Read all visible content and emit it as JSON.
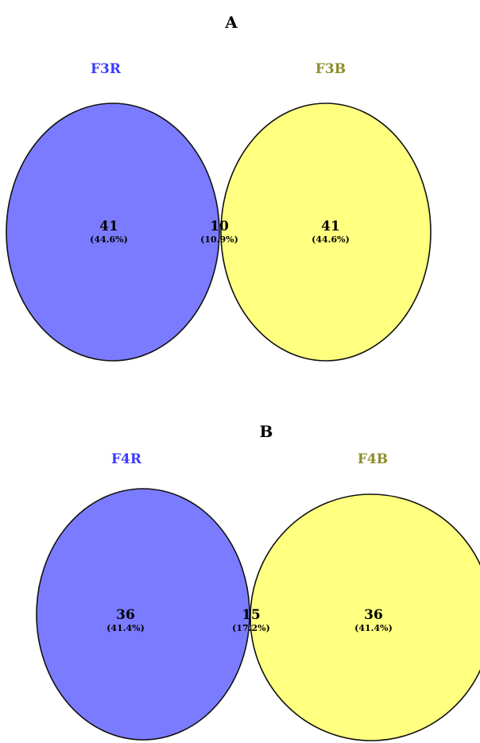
{
  "panels": [
    {
      "label": "A",
      "sets": [
        {
          "name": "F3R",
          "color": "#7b7bff",
          "label_color": "#3b3bff"
        },
        {
          "name": "F3B",
          "color": "#ffff80",
          "label_color": "#8c8c2c"
        }
      ],
      "overlap_color": "#99995f",
      "regions": {
        "left_only": {
          "count": "41",
          "pct": "(44.6%)"
        },
        "both": {
          "count": "10",
          "pct": "(10.9%)"
        },
        "right_only": {
          "count": "41",
          "pct": "(44.6%)"
        }
      }
    },
    {
      "label": "B",
      "sets": [
        {
          "name": "F4R",
          "color": "#7b7bff",
          "label_color": "#3b3bff"
        },
        {
          "name": "F4B",
          "color": "#ffff80",
          "label_color": "#8c8c2c"
        }
      ],
      "overlap_color": "#99995f",
      "regions": {
        "left_only": {
          "count": "36",
          "pct": "(41.4%)"
        },
        "both": {
          "count": "15",
          "pct": "(17.2%)"
        },
        "right_only": {
          "count": "36",
          "pct": "(41.4%)"
        }
      }
    }
  ]
}
